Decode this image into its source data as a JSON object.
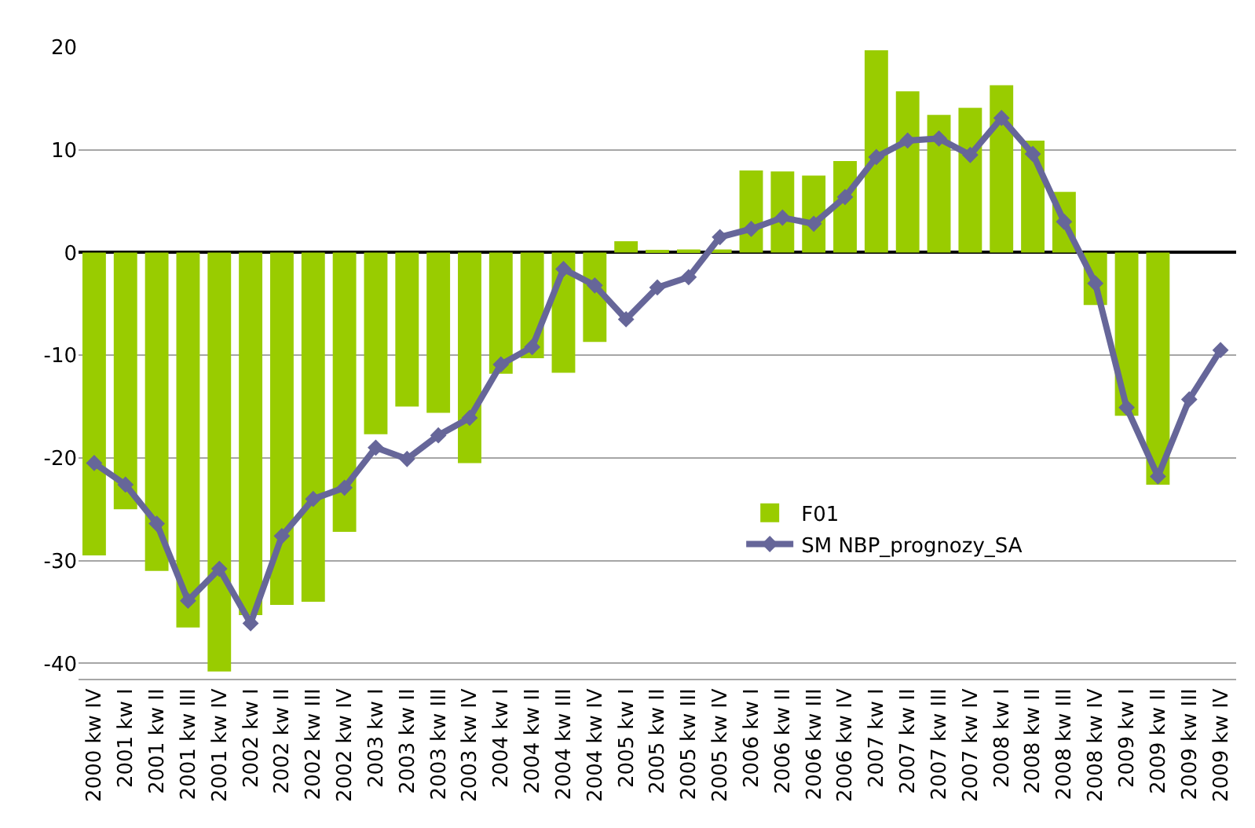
{
  "chart_data": {
    "type": "bar",
    "categories": [
      "2000 kw IV",
      "2001 kw I",
      "2001 kw II",
      "2001 kw III",
      "2001 kw IV",
      "2002 kw I",
      "2002 kw II",
      "2002 kw III",
      "2002 kw IV",
      "2003 kw I",
      "2003 kw II",
      "2003 kw III",
      "2003 kw IV",
      "2004 kw I",
      "2004 kw II",
      "2004 kw III",
      "2004 kw IV",
      "2005 kw I",
      "2005 kw II",
      "2005 kw III",
      "2005 kw IV",
      "2006 kw I",
      "2006 kw II",
      "2006 kw III",
      "2006 kw IV",
      "2007 kw I",
      "2007 kw II",
      "2007 kw III",
      "2007 kw IV",
      "2008 kw I",
      "2008 kw II",
      "2008 kw III",
      "2008 kw IV",
      "2009 kw I",
      "2009 kw II",
      "2009 kw III",
      "2009 kw IV"
    ],
    "series": [
      {
        "name": "F01",
        "color": "#99cc00",
        "values": [
          -29.5,
          -25,
          -31,
          -36.5,
          -40.8,
          -35.3,
          -34.3,
          -34,
          -27.2,
          -17.7,
          -15,
          -15.6,
          -20.5,
          -11.8,
          -10.3,
          -11.7,
          -8.7,
          1.1,
          0.2,
          0.3,
          0.3,
          8,
          7.9,
          7.5,
          8.9,
          19.7,
          15.7,
          13.4,
          14.1,
          16.3,
          10.9,
          5.9,
          -5.1,
          -15.9,
          -22.6,
          null,
          null
        ]
      },
      {
        "name": "SM NBP_prognozy_SA",
        "type": "line",
        "color": "#666699",
        "marker": "diamond",
        "values": [
          -20.5,
          -22.6,
          -26.4,
          -33.9,
          -30.8,
          -36.1,
          -27.6,
          -24,
          -22.9,
          -19,
          -20.1,
          -17.8,
          -16.1,
          -10.9,
          -9.2,
          -1.6,
          -3.2,
          -6.5,
          -3.4,
          -2.4,
          1.5,
          2.3,
          3.4,
          2.8,
          5.4,
          9.3,
          10.9,
          11.1,
          9.5,
          13.1,
          9.6,
          3,
          -3,
          -15.1,
          -21.8,
          -14.3,
          -9.5
        ]
      }
    ],
    "ylim": [
      -41.5,
      20
    ],
    "yticks": [
      -40,
      -30,
      -20,
      -10,
      0,
      10,
      20
    ],
    "grid": "y",
    "legend": "bottom right"
  }
}
